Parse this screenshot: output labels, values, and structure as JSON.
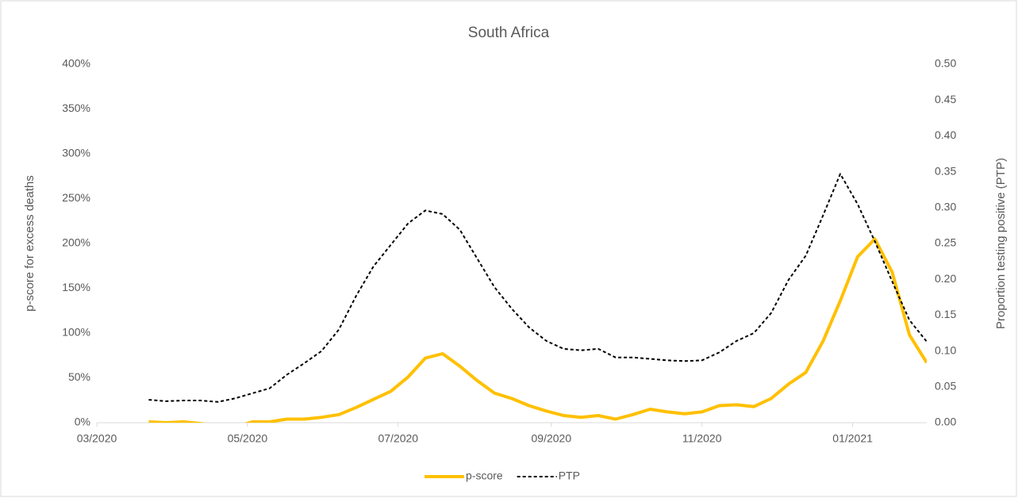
{
  "chart_data": {
    "type": "line",
    "title": "South Africa",
    "y_label": "p-score for excess deaths",
    "y2_label": "Proportion testing positive (PTP)",
    "x": [
      43912,
      43919,
      43926,
      43933,
      43940,
      43947,
      43954,
      43961,
      43968,
      43975,
      43982,
      43989,
      43996,
      44003,
      44010,
      44017,
      44024,
      44031,
      44038,
      44045,
      44052,
      44059,
      44066,
      44073,
      44080,
      44087,
      44094,
      44101,
      44108,
      44115,
      44122,
      44129,
      44136,
      44143,
      44150,
      44157,
      44164,
      44171,
      44178,
      44185,
      44192,
      44199,
      44206,
      44213,
      44220,
      44227
    ],
    "series": [
      {
        "name": "p-score",
        "color": "#ffc000",
        "axis": "y",
        "values": [
          1,
          0,
          1,
          -1,
          -3,
          -5,
          1,
          1,
          4,
          4,
          6,
          9,
          17,
          26,
          35,
          51,
          72,
          77,
          63,
          47,
          33,
          27,
          19,
          13,
          8,
          6,
          8,
          4,
          9,
          15,
          12,
          10,
          12,
          19,
          20,
          18,
          27,
          43,
          56,
          91,
          136,
          185,
          205,
          168,
          98,
          67
        ]
      },
      {
        "name": "PTP",
        "color": "#000000",
        "axis": "y2",
        "dash": true,
        "values": [
          0.032,
          0.03,
          0.031,
          0.031,
          0.029,
          0.034,
          0.041,
          0.048,
          0.067,
          0.083,
          0.1,
          0.13,
          0.177,
          0.218,
          0.248,
          0.278,
          0.296,
          0.291,
          0.269,
          0.229,
          0.189,
          0.159,
          0.133,
          0.114,
          0.103,
          0.101,
          0.103,
          0.091,
          0.091,
          0.089,
          0.087,
          0.086,
          0.087,
          0.098,
          0.114,
          0.125,
          0.153,
          0.199,
          0.233,
          0.289,
          0.347,
          0.305,
          0.253,
          0.197,
          0.143,
          0.113
        ]
      }
    ],
    "xlim": [
      43891,
      44227
    ],
    "xticks": [
      {
        "value": 43891,
        "label": "03/2020"
      },
      {
        "value": 43952,
        "label": "05/2020"
      },
      {
        "value": 44013,
        "label": "07/2020"
      },
      {
        "value": 44075,
        "label": "09/2020"
      },
      {
        "value": 44136,
        "label": "11/2020"
      },
      {
        "value": 44197,
        "label": "01/2021"
      }
    ],
    "ylim": [
      0,
      400
    ],
    "yticks": [
      {
        "value": 0,
        "label": "0%"
      },
      {
        "value": 50,
        "label": "50%"
      },
      {
        "value": 100,
        "label": "100%"
      },
      {
        "value": 150,
        "label": "150%"
      },
      {
        "value": 200,
        "label": "200%"
      },
      {
        "value": 250,
        "label": "250%"
      },
      {
        "value": 300,
        "label": "300%"
      },
      {
        "value": 350,
        "label": "350%"
      },
      {
        "value": 400,
        "label": "400%"
      }
    ],
    "y2lim": [
      0,
      0.5
    ],
    "y2ticks": [
      {
        "value": 0,
        "label": "0.00"
      },
      {
        "value": 0.05,
        "label": "0.05"
      },
      {
        "value": 0.1,
        "label": "0.10"
      },
      {
        "value": 0.15,
        "label": "0.15"
      },
      {
        "value": 0.2,
        "label": "0.20"
      },
      {
        "value": 0.25,
        "label": "0.25"
      },
      {
        "value": 0.3,
        "label": "0.30"
      },
      {
        "value": 0.35,
        "label": "0.35"
      },
      {
        "value": 0.4,
        "label": "0.40"
      },
      {
        "value": 0.45,
        "label": "0.45"
      },
      {
        "value": 0.5,
        "label": "0.50"
      }
    ],
    "legend": "bottom"
  }
}
